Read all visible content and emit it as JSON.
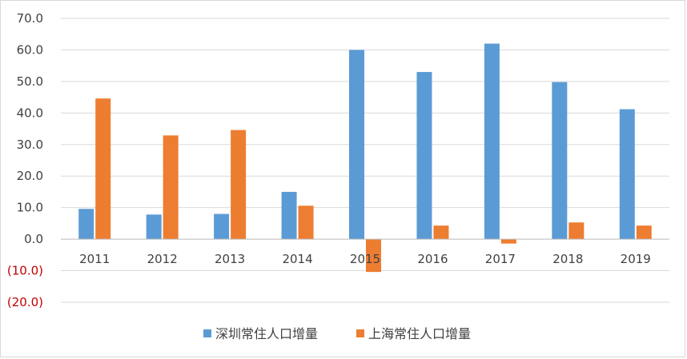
{
  "chart_data": {
    "type": "bar",
    "categories": [
      "2011",
      "2012",
      "2013",
      "2014",
      "2015",
      "2016",
      "2017",
      "2018",
      "2019"
    ],
    "series": [
      {
        "name": "深圳常住人口增量",
        "color": "#5b9bd5",
        "values": [
          9.6,
          7.8,
          8.0,
          15.0,
          60.0,
          53.0,
          62.0,
          49.8,
          41.2
        ]
      },
      {
        "name": "上海常住人口增量",
        "color": "#ed7d31",
        "values": [
          44.6,
          32.9,
          34.6,
          10.6,
          -10.4,
          4.3,
          -1.4,
          5.3,
          4.3
        ]
      }
    ],
    "ylim": [
      -20,
      70
    ],
    "yticks": [
      70,
      60,
      50,
      40,
      30,
      20,
      10,
      0,
      -10,
      -20
    ],
    "ytick_labels": [
      "70.0",
      "60.0",
      "50.0",
      "40.0",
      "30.0",
      "20.0",
      "10.0",
      "0.0",
      "(10.0)",
      "(20.0)"
    ],
    "negative_tick_color": "#c00000",
    "grid": true,
    "legend_position": "bottom",
    "title": "",
    "xlabel": "",
    "ylabel": ""
  }
}
